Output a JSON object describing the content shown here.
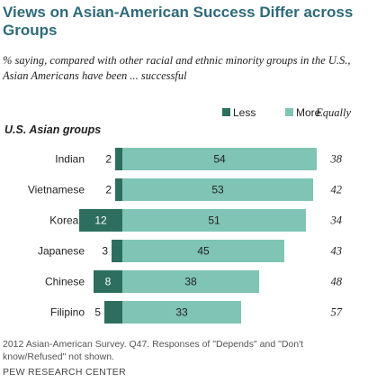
{
  "title": "Views on Asian-American Success Differ across Groups",
  "subtitle": "% saying, compared with other racial and ethnic minority groups in the U.S., Asian Americans have been ... successful",
  "footnote": "2012 Asian-American Survey. Q47. Responses of \"Depends\" and \"Don't know/Refused\" not shown.",
  "source": "PEW RESEARCH CENTER",
  "chart_data": {
    "type": "bar",
    "orientation": "horizontal",
    "stacked": "diverging",
    "row_header": "U.S. Asian groups",
    "categories": [
      "Indian",
      "Vietnamese",
      "Korean",
      "Japanese",
      "Chinese",
      "Filipino"
    ],
    "series": [
      {
        "name": "Less",
        "color": "#2d6e5f",
        "values": [
          2,
          2,
          12,
          3,
          8,
          5
        ]
      },
      {
        "name": "More",
        "color": "#7fc4b4",
        "values": [
          54,
          53,
          51,
          45,
          38,
          33
        ]
      }
    ],
    "extra_column": {
      "name": "Equally",
      "values": [
        38,
        42,
        34,
        43,
        48,
        57
      ]
    },
    "legend_position": "top",
    "grid": false
  }
}
